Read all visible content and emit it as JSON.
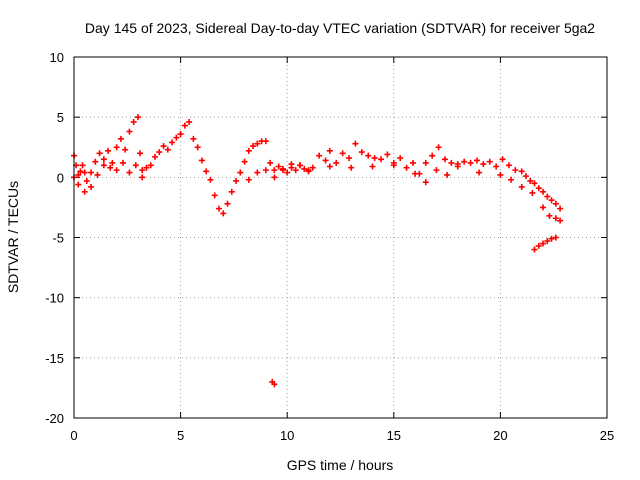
{
  "chart_data": {
    "type": "scatter",
    "title": "Day 145 of 2023, Sidereal Day-to-day VTEC variation (SDTVAR) for receiver 5ga2",
    "xlabel": "GPS time / hours",
    "ylabel": "SDTVAR / TECUs",
    "xlim": [
      0,
      25
    ],
    "ylim": [
      -20,
      10
    ],
    "xticks": [
      0,
      5,
      10,
      15,
      20,
      25
    ],
    "yticks": [
      -20,
      -15,
      -10,
      -5,
      0,
      5,
      10
    ],
    "grid": true,
    "marker": "plus",
    "color": "#ff0000",
    "series": [
      {
        "name": "SDTVAR",
        "x": [
          0.0,
          0.1,
          0.2,
          0.3,
          0.4,
          0.5,
          0.6,
          0.8,
          1.0,
          1.2,
          1.4,
          1.6,
          1.8,
          2.0,
          2.2,
          2.4,
          2.6,
          2.8,
          3.0,
          3.1,
          3.2,
          3.4,
          3.6,
          3.8,
          4.0,
          4.2,
          4.4,
          4.6,
          4.8,
          5.0,
          5.2,
          5.4,
          5.6,
          5.8,
          6.0,
          6.2,
          6.4,
          6.6,
          6.8,
          7.0,
          7.2,
          7.4,
          7.6,
          7.8,
          8.0,
          8.2,
          8.4,
          8.6,
          8.8,
          9.0,
          9.2,
          9.4,
          9.6,
          9.8,
          10.0,
          10.2,
          10.4,
          10.6,
          10.8,
          11.0,
          11.2,
          11.5,
          11.8,
          12.0,
          12.3,
          12.6,
          12.9,
          13.2,
          13.5,
          13.8,
          14.1,
          14.4,
          14.7,
          15.0,
          15.3,
          15.6,
          15.9,
          16.2,
          16.5,
          16.8,
          17.1,
          17.4,
          17.7,
          18.0,
          18.3,
          18.6,
          18.9,
          19.2,
          19.5,
          19.8,
          20.1,
          20.4,
          20.7,
          21.0,
          21.2,
          21.4,
          21.6,
          21.8,
          22.0,
          22.2,
          22.4,
          22.6,
          22.8,
          0.0,
          0.2,
          0.5,
          0.8,
          1.1,
          1.4,
          1.7,
          2.0,
          2.3,
          2.6,
          2.9,
          3.2,
          8.2,
          8.6,
          9.0,
          9.4,
          9.8,
          10.2,
          10.6,
          11.0,
          12.0,
          13.0,
          14.0,
          15.0,
          16.0,
          16.5,
          17.0,
          17.5,
          18.0,
          19.0,
          20.0,
          20.5,
          21.0,
          21.5,
          22.0,
          22.3,
          22.6,
          22.8,
          21.6,
          21.8,
          22.0,
          22.2,
          22.4,
          22.6,
          9.3,
          9.4
        ],
        "y": [
          1.8,
          1.0,
          0.2,
          0.5,
          1.0,
          0.4,
          -0.3,
          0.4,
          1.3,
          2.0,
          1.5,
          2.2,
          1.2,
          2.5,
          3.2,
          2.3,
          3.8,
          4.6,
          5.0,
          2.0,
          0.0,
          0.8,
          1.0,
          1.7,
          2.1,
          2.6,
          2.3,
          2.9,
          3.3,
          3.6,
          4.3,
          4.6,
          3.2,
          2.5,
          1.4,
          0.5,
          -0.2,
          -1.5,
          -2.6,
          -3.0,
          -2.2,
          -1.2,
          -0.3,
          0.4,
          1.3,
          2.2,
          2.6,
          2.8,
          3.0,
          3.0,
          1.2,
          0.6,
          0.9,
          0.6,
          0.4,
          1.1,
          0.6,
          1.0,
          0.7,
          0.5,
          0.8,
          1.8,
          1.4,
          2.2,
          1.2,
          2.0,
          1.6,
          2.8,
          2.1,
          1.8,
          1.6,
          1.5,
          1.9,
          1.2,
          1.6,
          0.8,
          1.2,
          0.3,
          1.2,
          1.8,
          2.5,
          1.5,
          1.2,
          1.1,
          1.3,
          1.2,
          1.4,
          1.1,
          1.3,
          0.9,
          1.5,
          1.0,
          0.6,
          0.5,
          0.1,
          -0.3,
          -0.5,
          -0.9,
          -1.2,
          -1.6,
          -1.9,
          -2.2,
          -2.6,
          0.0,
          -0.6,
          -1.2,
          -0.8,
          0.2,
          1.0,
          0.8,
          0.6,
          1.2,
          0.4,
          1.0,
          0.6,
          -0.2,
          0.4,
          0.6,
          0.0,
          0.7,
          0.8,
          1.0,
          0.6,
          0.9,
          0.8,
          0.9,
          1.0,
          0.3,
          -0.4,
          0.6,
          0.2,
          0.9,
          0.4,
          0.2,
          -0.2,
          -0.8,
          -1.3,
          -2.5,
          -3.2,
          -3.4,
          -3.6,
          -6.0,
          -5.7,
          -5.5,
          -5.3,
          -5.1,
          -5.0,
          -17.0,
          -17.2
        ]
      }
    ]
  }
}
